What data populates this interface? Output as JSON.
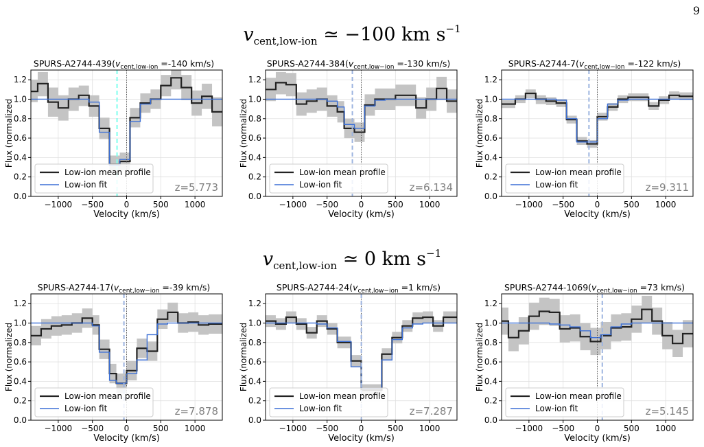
{
  "page_number": "9",
  "row_headings": [
    {
      "symbol": "v",
      "subscript": "cent,low-ion",
      "relation": " ≃ −100 km s",
      "superscript": "−1"
    },
    {
      "symbol": "v",
      "subscript": "cent,low-ion",
      "relation": " ≃ 0 km s",
      "superscript": "−1"
    }
  ],
  "colors": {
    "profile": "#222222",
    "fit": "#3b6fd6",
    "error_band": "#c4c4c4",
    "grid": "#e0e0e0",
    "vcent_line_first": "#7fffee",
    "vcent_line": "#9db4e0",
    "zero_line": "#555555",
    "redshift_text": "#808080"
  },
  "chart_data": [
    {
      "type": "line",
      "title": "SPURS-A2744-439(v_cent,low-ion =-140 km/s)",
      "title_parts": {
        "prefix": "SPURS-A2744-439(",
        "v": "v",
        "sub": "cent,low-ion",
        "suffix": " =-140 km/s)"
      },
      "xlabel": "Velocity (km/s)",
      "ylabel": "Flux (normalized",
      "xlim": [
        -1400,
        1400
      ],
      "ylim": [
        0,
        1.3
      ],
      "xticks": [
        -1000,
        -500,
        0,
        500,
        1000
      ],
      "yticks": [
        0.0,
        0.2,
        0.4,
        0.6,
        0.8,
        1.0,
        1.2
      ],
      "redshift_label": "z=5.773",
      "v_cent": -140,
      "legend": [
        "Low-ion mean profile",
        "Low-ion fit"
      ],
      "bin_edges": [
        -1400,
        -1300,
        -1150,
        -1000,
        -850,
        -700,
        -550,
        -400,
        -250,
        -100,
        50,
        200,
        350,
        500,
        650,
        800,
        950,
        1100,
        1250,
        1400
      ],
      "profile": [
        1.08,
        1.16,
        0.97,
        0.91,
        1.0,
        1.04,
        0.93,
        0.7,
        0.33,
        0.36,
        0.81,
        0.96,
        1.0,
        1.14,
        1.22,
        1.12,
        0.96,
        1.03,
        0.87
      ],
      "error_low": [
        0.97,
        1.03,
        0.82,
        0.78,
        0.88,
        0.93,
        0.82,
        0.59,
        0.24,
        0.27,
        0.71,
        0.86,
        0.9,
        1.03,
        1.1,
        0.99,
        0.83,
        0.9,
        0.72
      ],
      "error_high": [
        1.2,
        1.28,
        1.12,
        1.04,
        1.12,
        1.14,
        1.04,
        0.81,
        0.42,
        0.45,
        0.91,
        1.06,
        1.1,
        1.25,
        1.3,
        1.25,
        1.09,
        1.16,
        1.02
      ],
      "fit": [
        1.0,
        1.0,
        1.0,
        1.0,
        1.0,
        1.0,
        0.97,
        0.66,
        0.32,
        0.38,
        0.77,
        0.95,
        1.0,
        1.0,
        1.0,
        1.0,
        1.0,
        1.0,
        1.0
      ]
    },
    {
      "type": "line",
      "title": "SPURS-A2744-384(v_cent,low−ion =-130 km/s)",
      "title_parts": {
        "prefix": "SPURS-A2744-384(",
        "v": "v",
        "sub": "cent,low−ion",
        "suffix": " =-130 km/s)"
      },
      "xlabel": "Velocity (km/s)",
      "ylabel": "Flux (normalized",
      "xlim": [
        -1400,
        1400
      ],
      "ylim": [
        0,
        1.3
      ],
      "xticks": [
        -1000,
        -500,
        0,
        500,
        1000
      ],
      "yticks": [
        0.0,
        0.2,
        0.4,
        0.6,
        0.8,
        1.0,
        1.2
      ],
      "redshift_label": "z=6.134",
      "v_cent": -130,
      "legend": [
        "Low-ion mean profile",
        "Low-ion fit"
      ],
      "bin_edges": [
        -1400,
        -1250,
        -1100,
        -950,
        -800,
        -650,
        -500,
        -350,
        -250,
        -100,
        50,
        200,
        350,
        500,
        650,
        800,
        950,
        1100,
        1250,
        1400
      ],
      "profile": [
        1.1,
        1.17,
        1.15,
        0.95,
        0.98,
        1.0,
        0.93,
        0.87,
        0.7,
        0.66,
        0.94,
        1.0,
        1.0,
        1.04,
        1.04,
        0.91,
        1.0,
        1.11,
        0.98
      ],
      "error_low": [
        0.98,
        1.05,
        1.03,
        0.83,
        0.86,
        0.88,
        0.82,
        0.76,
        0.6,
        0.56,
        0.83,
        0.89,
        0.89,
        0.93,
        0.93,
        0.8,
        0.88,
        0.99,
        0.86
      ],
      "error_high": [
        1.22,
        1.28,
        1.27,
        1.07,
        1.1,
        1.12,
        1.04,
        0.98,
        0.8,
        0.76,
        1.05,
        1.11,
        1.11,
        1.15,
        1.15,
        1.02,
        1.12,
        1.23,
        1.1
      ],
      "fit": [
        1.0,
        1.0,
        1.0,
        1.0,
        1.0,
        1.0,
        0.98,
        0.92,
        0.74,
        0.7,
        0.93,
        0.99,
        1.0,
        1.0,
        1.0,
        1.0,
        1.0,
        1.0,
        1.0
      ]
    },
    {
      "type": "line",
      "title": "SPURS-A2744-7(v_cent,low−ion =-122 km/s)",
      "title_parts": {
        "prefix": "SPURS-A2744-7(",
        "v": "v",
        "sub": "cent,low−ion",
        "suffix": " =-122 km/s)"
      },
      "xlabel": "Velocity (km/s)",
      "ylabel": "Flux (normalized",
      "xlim": [
        -1400,
        1400
      ],
      "ylim": [
        0,
        1.3
      ],
      "xticks": [
        -1000,
        -500,
        0,
        500,
        1000
      ],
      "yticks": [
        0.0,
        0.2,
        0.4,
        0.6,
        0.8,
        1.0,
        1.2
      ],
      "redshift_label": "z=9.311",
      "v_cent": -122,
      "legend": [
        "Low-ion mean profile",
        "Low-ion fit"
      ],
      "bin_edges": [
        -1400,
        -1200,
        -1050,
        -900,
        -750,
        -600,
        -450,
        -300,
        -150,
        0,
        150,
        300,
        450,
        600,
        750,
        900,
        1050,
        1200,
        1400
      ],
      "profile": [
        0.95,
        1.0,
        1.06,
        1.0,
        0.98,
        0.96,
        0.79,
        0.57,
        0.54,
        0.82,
        0.92,
        1.0,
        1.02,
        1.02,
        0.93,
        0.99,
        1.04,
        1.03
      ],
      "error_low": [
        0.91,
        0.96,
        1.01,
        0.95,
        0.94,
        0.92,
        0.75,
        0.53,
        0.5,
        0.78,
        0.88,
        0.96,
        0.98,
        0.98,
        0.89,
        0.95,
        1.0,
        0.99
      ],
      "error_high": [
        0.99,
        1.04,
        1.1,
        1.04,
        1.02,
        1.0,
        0.83,
        0.61,
        0.58,
        0.86,
        0.96,
        1.04,
        1.06,
        1.06,
        0.97,
        1.03,
        1.08,
        1.07
      ],
      "fit": [
        1.0,
        1.0,
        1.0,
        1.0,
        1.0,
        0.99,
        0.8,
        0.56,
        0.56,
        0.8,
        0.95,
        0.99,
        1.0,
        1.0,
        1.0,
        1.0,
        1.0,
        1.0
      ]
    },
    {
      "type": "line",
      "title": "SPURS-A2744-17(v_cent,low−ion =-39 km/s)",
      "title_parts": {
        "prefix": "SPURS-A2744-17(",
        "v": "v",
        "sub": "cent,low−ion",
        "suffix": " =-39 km/s)"
      },
      "xlabel": "Velocity (km/s)",
      "ylabel": "Flux (normalized",
      "xlim": [
        -1400,
        1400
      ],
      "ylim": [
        0,
        1.3
      ],
      "xticks": [
        -1000,
        -500,
        0,
        500,
        1000
      ],
      "yticks": [
        0.0,
        0.2,
        0.4,
        0.6,
        0.8,
        1.0,
        1.2
      ],
      "redshift_label": "z=7.878",
      "v_cent": -39,
      "legend": [
        "Low-ion mean profile",
        "Low-ion fit"
      ],
      "bin_edges": [
        -1400,
        -1250,
        -1100,
        -950,
        -800,
        -650,
        -500,
        -400,
        -250,
        -150,
        0,
        150,
        300,
        450,
        600,
        750,
        900,
        1050,
        1200,
        1400
      ],
      "profile": [
        0.87,
        0.94,
        0.97,
        0.98,
        1.0,
        1.05,
        0.98,
        0.73,
        0.48,
        0.38,
        0.51,
        0.74,
        0.71,
        1.04,
        1.11,
        1.0,
        1.01,
        0.98,
        0.99
      ],
      "error_low": [
        0.77,
        0.84,
        0.87,
        0.88,
        0.9,
        0.95,
        0.88,
        0.63,
        0.38,
        0.28,
        0.41,
        0.64,
        0.61,
        0.94,
        1.01,
        0.9,
        0.91,
        0.88,
        0.89
      ],
      "error_high": [
        0.97,
        1.04,
        1.07,
        1.08,
        1.1,
        1.15,
        1.08,
        0.83,
        0.58,
        0.48,
        0.61,
        0.84,
        0.81,
        1.14,
        1.21,
        1.1,
        1.11,
        1.08,
        1.09
      ],
      "fit": [
        1.0,
        1.0,
        1.0,
        1.0,
        1.0,
        1.0,
        0.97,
        0.7,
        0.41,
        0.38,
        0.48,
        0.62,
        0.88,
        0.99,
        1.0,
        1.0,
        1.0,
        1.0,
        1.0
      ]
    },
    {
      "type": "line",
      "title": "SPURS-A2744-24(v_cent,low−ion =1 km/s)",
      "title_parts": {
        "prefix": "SPURS-A2744-24(",
        "v": "v",
        "sub": "cent,low−ion",
        "suffix": " =1 km/s)"
      },
      "xlabel": "Velocity (km/s)",
      "ylabel": "Flux (normalized",
      "xlim": [
        -1400,
        1400
      ],
      "ylim": [
        0,
        1.3
      ],
      "xticks": [
        -1000,
        -500,
        0,
        500,
        1000
      ],
      "yticks": [
        0.0,
        0.2,
        0.4,
        0.6,
        0.8,
        1.0,
        1.2
      ],
      "redshift_label": "z=7.287",
      "v_cent": 1,
      "legend": [
        "Low-ion mean profile",
        "Low-ion fit"
      ],
      "bin_edges": [
        -1400,
        -1250,
        -1100,
        -950,
        -800,
        -650,
        -500,
        -350,
        -150,
        0,
        150,
        300,
        450,
        600,
        750,
        900,
        1050,
        1200,
        1400
      ],
      "profile": [
        1.02,
        0.99,
        1.06,
        0.99,
        0.9,
        1.02,
        0.94,
        0.8,
        0.61,
        0.31,
        0.31,
        0.68,
        0.85,
        0.97,
        1.05,
        1.06,
        0.97,
        1.06
      ],
      "error_low": [
        0.96,
        0.93,
        1.0,
        0.93,
        0.84,
        0.96,
        0.88,
        0.74,
        0.55,
        0.25,
        0.25,
        0.62,
        0.79,
        0.91,
        0.99,
        1.0,
        0.91,
        1.0
      ],
      "error_high": [
        1.08,
        1.05,
        1.12,
        1.05,
        0.96,
        1.08,
        1.0,
        0.86,
        0.67,
        0.37,
        0.37,
        0.74,
        0.91,
        1.03,
        1.11,
        1.12,
        1.03,
        1.12
      ],
      "fit": [
        1.0,
        1.0,
        1.0,
        1.0,
        1.0,
        0.99,
        0.95,
        0.81,
        0.55,
        0.33,
        0.33,
        0.62,
        0.83,
        0.95,
        0.99,
        1.0,
        1.0,
        1.0
      ]
    },
    {
      "type": "line",
      "title": "SPURS-A2744-1069(v_cent,low−ion =73 km/s)",
      "title_parts": {
        "prefix": "SPURS-A2744-1069(",
        "v": "v",
        "sub": "cent,low−ion",
        "suffix": " =73 km/s)"
      },
      "xlabel": "Velocity (km/s)",
      "ylabel": "Flux (normalized",
      "xlim": [
        -1400,
        1400
      ],
      "ylim": [
        0,
        1.3
      ],
      "xticks": [
        -1000,
        -500,
        0,
        500,
        1000
      ],
      "yticks": [
        0.0,
        0.2,
        0.4,
        0.6,
        0.8,
        1.0,
        1.2
      ],
      "redshift_label": "z=5.145",
      "v_cent": 73,
      "legend": [
        "Low-ion mean profile",
        "Low-ion fit"
      ],
      "bin_edges": [
        -1400,
        -1300,
        -1150,
        -1000,
        -850,
        -700,
        -550,
        -400,
        -250,
        -100,
        50,
        200,
        350,
        500,
        650,
        800,
        950,
        1100,
        1250,
        1400
      ],
      "profile": [
        1.02,
        0.85,
        0.92,
        1.07,
        1.12,
        1.11,
        0.94,
        0.95,
        0.86,
        0.81,
        0.87,
        0.95,
        0.96,
        1.04,
        1.14,
        1.02,
        0.87,
        0.79,
        0.89
      ],
      "error_low": [
        0.88,
        0.71,
        0.78,
        0.93,
        0.98,
        0.97,
        0.8,
        0.81,
        0.72,
        0.67,
        0.73,
        0.81,
        0.82,
        0.9,
        1.0,
        0.88,
        0.73,
        0.65,
        0.75
      ],
      "error_high": [
        1.16,
        0.99,
        1.06,
        1.21,
        1.26,
        1.25,
        1.08,
        1.09,
        1.0,
        0.95,
        1.01,
        1.09,
        1.1,
        1.18,
        1.28,
        1.16,
        1.01,
        0.93,
        1.03
      ],
      "fit": [
        1.0,
        1.0,
        1.0,
        1.0,
        1.0,
        0.99,
        0.98,
        0.96,
        0.92,
        0.85,
        0.88,
        0.96,
        0.99,
        1.0,
        1.0,
        1.0,
        1.0,
        1.0,
        1.0
      ]
    }
  ]
}
